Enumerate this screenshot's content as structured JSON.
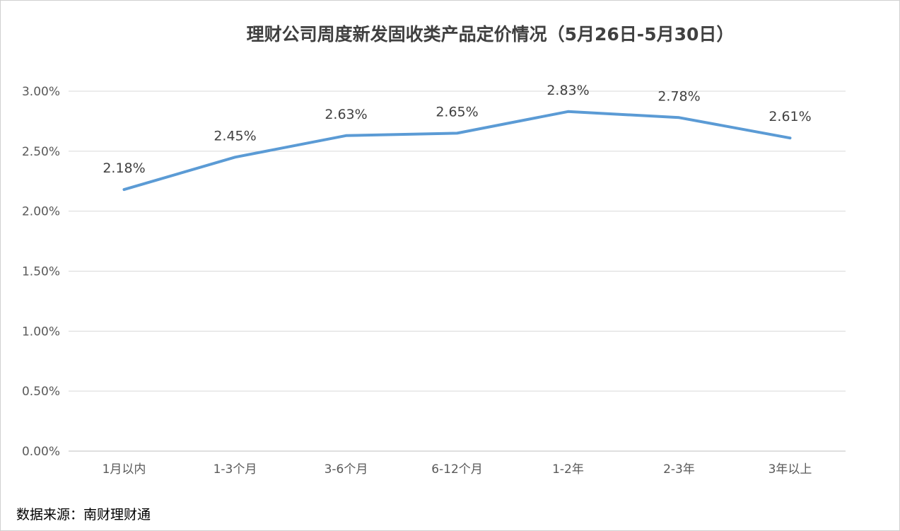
{
  "chart_data": {
    "type": "line",
    "title": "理财公司周度新发固收类产品定价情况（5月26日-5月30日）",
    "source": "数据来源：南财理财通",
    "xlabel": "",
    "ylabel": "",
    "categories": [
      "1月以内",
      "1-3个月",
      "3-6个月",
      "6-12个月",
      "1-2年",
      "2-3年",
      "3年以上"
    ],
    "series": [
      {
        "values": [
          2.18,
          2.45,
          2.63,
          2.65,
          2.83,
          2.78,
          2.61
        ],
        "labels": [
          "2.18%",
          "2.45%",
          "2.63%",
          "2.65%",
          "2.83%",
          "2.78%",
          "2.61%"
        ],
        "color": "#5b9bd5"
      }
    ],
    "ylim": [
      0,
      3
    ],
    "yticks": [
      0,
      0.5,
      1.0,
      1.5,
      2.0,
      2.5,
      3.0
    ],
    "ytick_labels": [
      "0.00%",
      "0.50%",
      "1.00%",
      "1.50%",
      "2.00%",
      "2.50%",
      "3.00%"
    ],
    "grid": true,
    "legend": "none",
    "grid_color": "#d9d9d9"
  }
}
